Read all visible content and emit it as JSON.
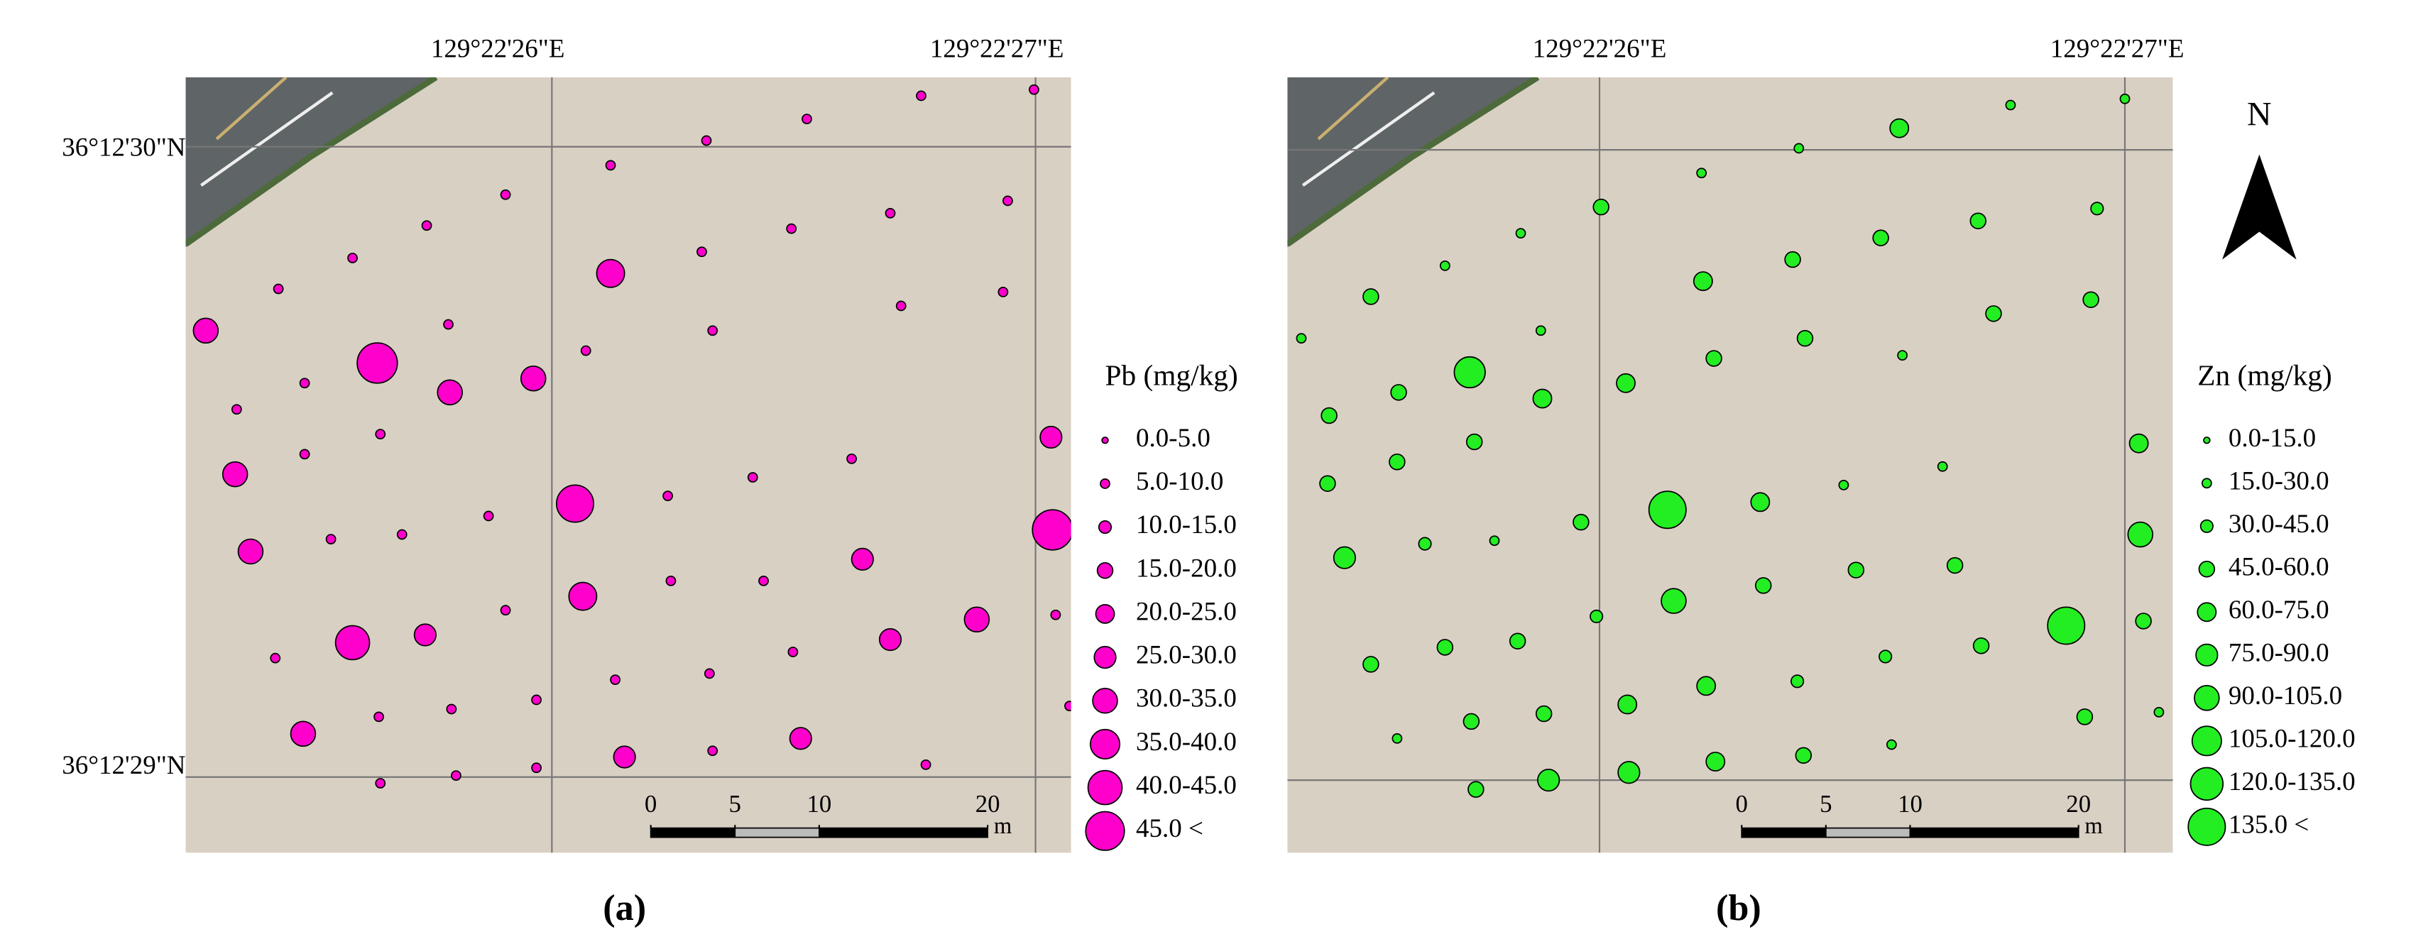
{
  "lon_labels": [
    "129°22'26\"E",
    "129°22'27\"E"
  ],
  "lat_labels": [
    "36°12'30\"N",
    "36°12'29\"N"
  ],
  "scale": {
    "ticks": [
      0,
      5,
      10,
      20
    ],
    "unit": "m"
  },
  "north": "N",
  "panels": [
    {
      "label": "(a)",
      "legend_title": "Pb (mg/kg)",
      "color": "#ff00cc",
      "classes": [
        "0.0-5.0",
        "5.0-10.0",
        "10.0-15.0",
        "15.0-20.0",
        "20.0-25.0",
        "25.0-30.0",
        "30.0-35.0",
        "35.0-40.0",
        "40.0-45.0",
        "45.0 <"
      ]
    },
    {
      "label": "(b)",
      "legend_title": "Zn (mg/kg)",
      "color": "#22ee22",
      "classes": [
        "0.0-15.0",
        "15.0-30.0",
        "30.0-45.0",
        "45.0-60.0",
        "60.0-75.0",
        "75.0-90.0",
        "90.0-105.0",
        "105.0-120.0",
        "120.0-135.0",
        "135.0 <"
      ]
    }
  ]
}
